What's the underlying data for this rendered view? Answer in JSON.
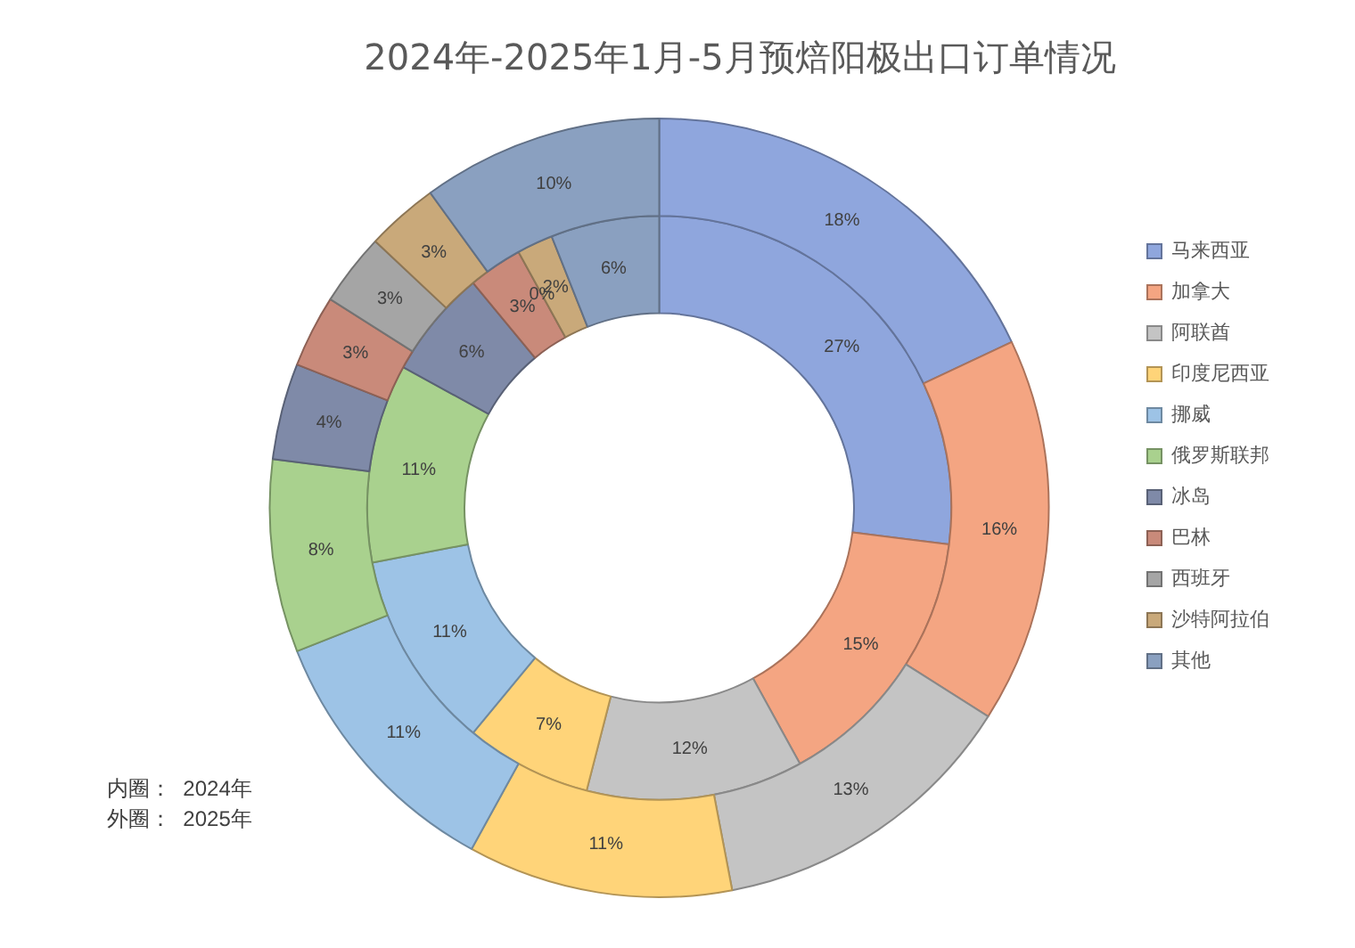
{
  "chart_data": {
    "type": "donut",
    "title": "2024年-2025年1月-5月预焙阳极出口订单情况",
    "categories": [
      "马来西亚",
      "加拿大",
      "阿联酋",
      "印度尼西亚",
      "挪威",
      "俄罗斯联邦",
      "冰岛",
      "巴林",
      "西班牙",
      "沙特阿拉伯",
      "其他"
    ],
    "colors": [
      "#8fa6dd",
      "#f4a582",
      "#c4c4c4",
      "#ffd479",
      "#9dc3e6",
      "#a9d18e",
      "#7f8aa8",
      "#c98a7a",
      "#a5a5a5",
      "#c9a97a",
      "#8aa0c0"
    ],
    "series": [
      {
        "values": [
          18,
          16,
          13,
          11,
          11,
          8,
          4,
          3,
          3,
          3,
          10
        ],
        "value_labels": [
          "18%",
          "16%",
          "13%",
          "11%",
          "11%",
          "8%",
          "4%",
          "3%",
          "3%",
          "3%",
          "10%"
        ]
      },
      {
        "values": [
          27,
          15,
          12,
          7,
          11,
          11,
          6,
          3,
          0,
          2,
          6
        ],
        "value_labels": [
          "27%",
          "15%",
          "12%",
          "7%",
          "11%",
          "11%",
          "6%",
          "3%",
          "0%",
          "2%",
          "6%"
        ]
      }
    ],
    "legend": "right",
    "annotations": [
      "内圈：  2024年",
      "外圈：  2025年"
    ]
  }
}
